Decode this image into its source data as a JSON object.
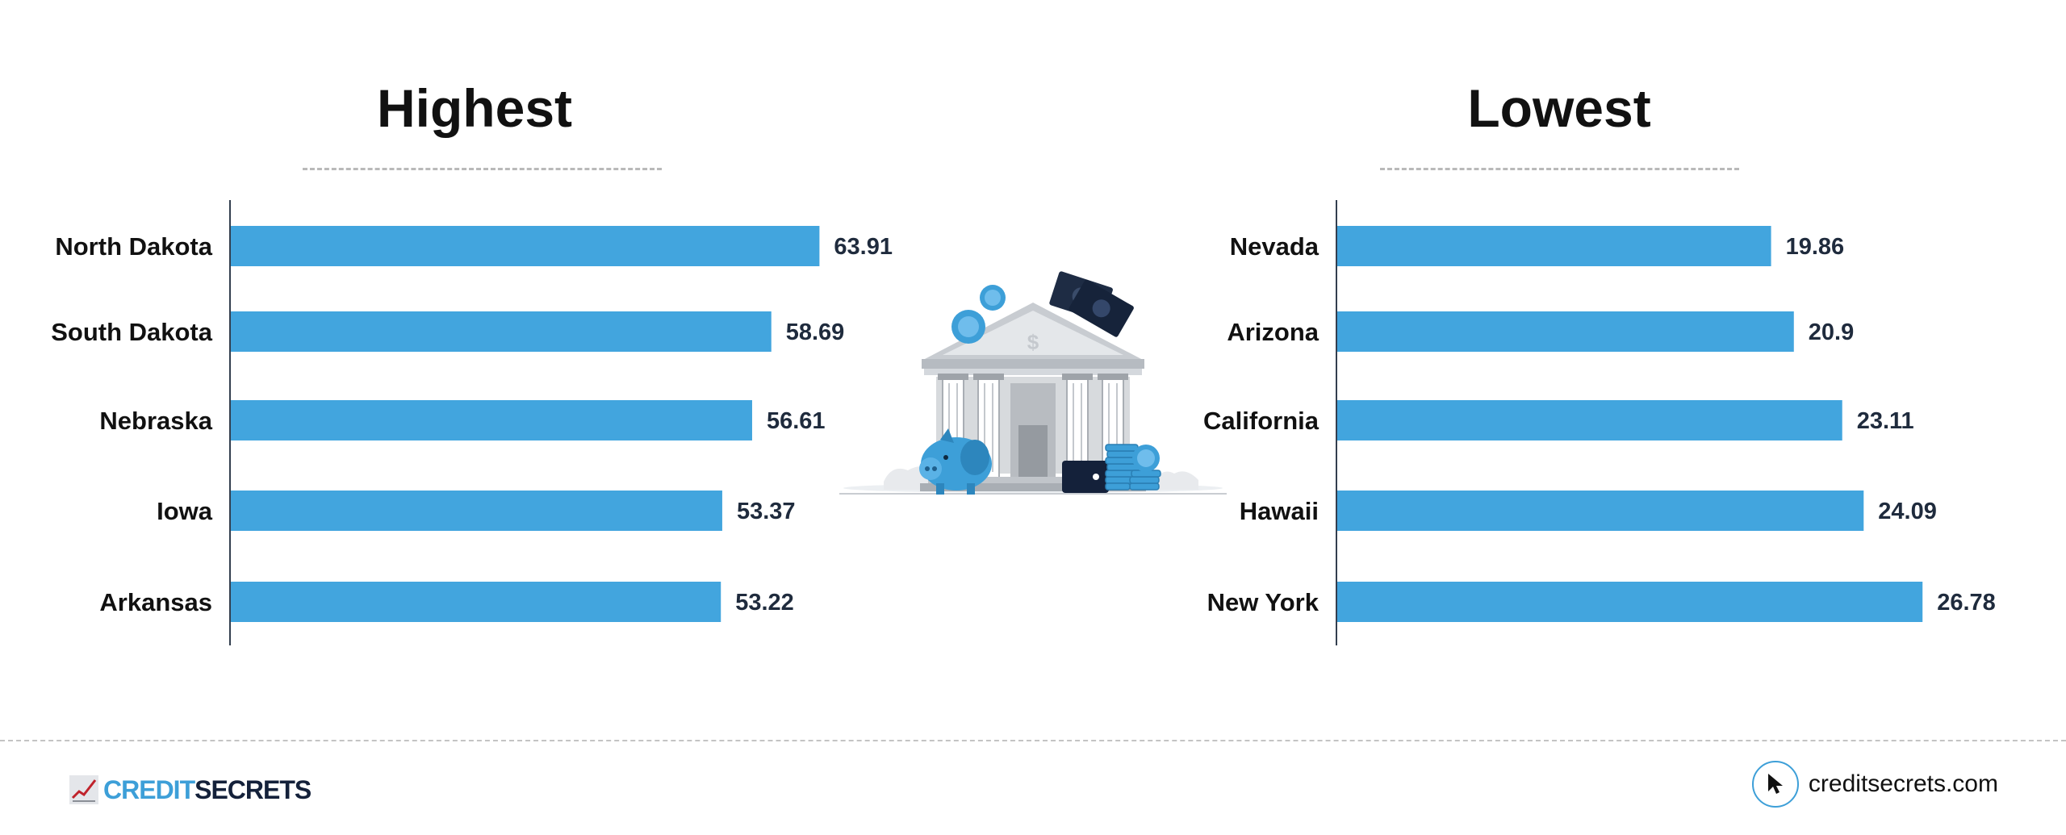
{
  "chart_data": [
    {
      "type": "bar",
      "orientation": "horizontal",
      "title": "Highest",
      "categories": [
        "North Dakota",
        "South Dakota",
        "Nebraska",
        "Iowa",
        "Arkansas"
      ],
      "values": [
        63.91,
        58.69,
        56.61,
        53.37,
        53.22
      ],
      "value_labels": [
        "63.91",
        "58.69",
        "56.61",
        "53.37",
        "53.22"
      ],
      "xlim": [
        0,
        70
      ],
      "grid": false,
      "legend": "none"
    },
    {
      "type": "bar",
      "orientation": "horizontal",
      "title": "Lowest",
      "categories": [
        "Nevada",
        "Arizona",
        "California",
        "Hawaii",
        "New York"
      ],
      "values": [
        19.86,
        20.9,
        23.11,
        24.09,
        26.78
      ],
      "value_labels": [
        "19.86",
        "20.9",
        "23.11",
        "24.09",
        "26.78"
      ],
      "xlim": [
        0,
        29.5
      ],
      "grid": false,
      "legend": "none"
    }
  ],
  "colors": {
    "bar": "#42a5de",
    "axis": "#333f4f",
    "value_text": "#1f2b3d",
    "brand_blue": "#3d9fd8",
    "brand_navy": "#14213a"
  },
  "illustration": {
    "icon": "bank-with-piggy-bank-and-money-icon"
  },
  "footer": {
    "brand_part1": "CREDIT",
    "brand_part2": "SECRETS",
    "brand_icon": "rising-chart-icon",
    "site_icon": "cursor-arrow-icon",
    "site": "creditsecrets.com"
  }
}
